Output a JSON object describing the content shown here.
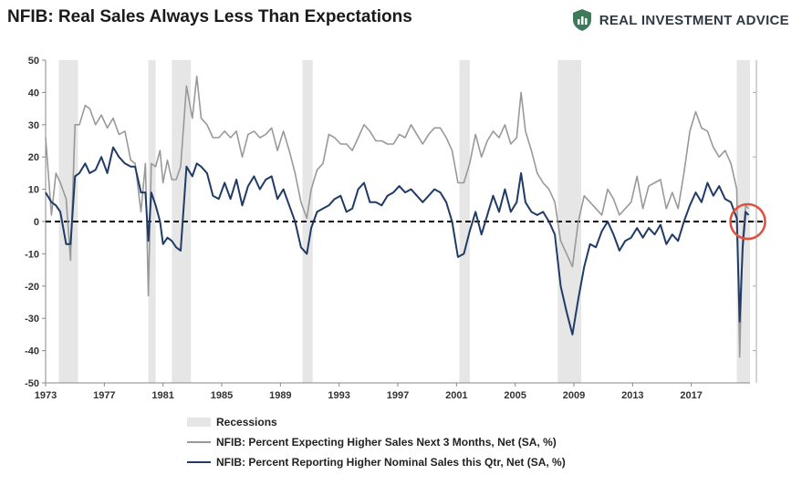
{
  "header": {
    "title": "NFIB: Real Sales Always Less Than Expectations",
    "brand": "REAL INVESTMENT ADVICE",
    "brand_icon": "shield-chart-icon",
    "brand_color": "#3d7a5a"
  },
  "chart_data": {
    "type": "line",
    "title": "NFIB: Real Sales Always Less Than Expectations",
    "xlim": [
      1973,
      2021
    ],
    "ylim": [
      -50,
      50
    ],
    "x_ticks": [
      "1973",
      "1977",
      "1981",
      "1985",
      "1989",
      "1993",
      "1997",
      "2001",
      "2005",
      "2009",
      "2013",
      "2017"
    ],
    "y_ticks": [
      "50",
      "40",
      "30",
      "20",
      "10",
      "0",
      "-10",
      "-20",
      "-30",
      "-40",
      "-50"
    ],
    "recessions": [
      [
        1973.9,
        1975.2
      ],
      [
        1980.0,
        1980.5
      ],
      [
        1981.6,
        1982.9
      ],
      [
        1990.5,
        1991.2
      ],
      [
        2001.2,
        2001.9
      ],
      [
        2007.9,
        2009.5
      ],
      [
        2020.1,
        2021.0
      ]
    ],
    "legend_position": "bottom",
    "reference_line": 0,
    "highlight_circle": {
      "x": 2020.6,
      "y": 0,
      "color": "#e05040"
    },
    "series": [
      {
        "name": "NFIB: Percent Expecting Higher Sales Next 3 Months, Net (SA, %)",
        "color": "#999999",
        "x": [
          1973.0,
          1973.4,
          1973.7,
          1974.0,
          1974.4,
          1974.7,
          1975.0,
          1975.3,
          1975.7,
          1976.0,
          1976.4,
          1976.8,
          1977.2,
          1977.6,
          1978.0,
          1978.4,
          1978.8,
          1979.1,
          1979.5,
          1979.8,
          1980.0,
          1980.2,
          1980.5,
          1980.8,
          1981.0,
          1981.3,
          1981.6,
          1981.9,
          1982.2,
          1982.6,
          1983.0,
          1983.3,
          1983.6,
          1984.0,
          1984.4,
          1984.8,
          1985.2,
          1985.6,
          1986.0,
          1986.4,
          1986.8,
          1987.2,
          1987.6,
          1988.0,
          1988.4,
          1988.8,
          1989.2,
          1989.6,
          1990.0,
          1990.4,
          1990.8,
          1991.1,
          1991.5,
          1991.9,
          1992.3,
          1992.7,
          1993.1,
          1993.5,
          1993.9,
          1994.3,
          1994.7,
          1995.1,
          1995.5,
          1995.9,
          1996.3,
          1996.7,
          1997.1,
          1997.5,
          1997.9,
          1998.3,
          1998.7,
          1999.1,
          1999.5,
          1999.9,
          2000.3,
          2000.7,
          2001.1,
          2001.5,
          2001.9,
          2002.3,
          2002.7,
          2003.1,
          2003.5,
          2003.9,
          2004.3,
          2004.7,
          2005.1,
          2005.4,
          2005.7,
          2006.1,
          2006.5,
          2006.9,
          2007.3,
          2007.7,
          2008.1,
          2008.5,
          2008.9,
          2009.3,
          2009.7,
          2010.1,
          2010.5,
          2010.9,
          2011.3,
          2011.7,
          2012.1,
          2012.5,
          2012.9,
          2013.3,
          2013.7,
          2014.1,
          2014.5,
          2014.9,
          2015.3,
          2015.7,
          2016.1,
          2016.5,
          2016.9,
          2017.3,
          2017.7,
          2018.1,
          2018.5,
          2018.9,
          2019.3,
          2019.7,
          2020.1,
          2020.3,
          2020.5,
          2020.7,
          2020.9
        ],
        "values": [
          26,
          2,
          15,
          12,
          7,
          -12,
          30,
          30,
          36,
          35,
          30,
          33,
          29,
          32,
          27,
          28,
          19,
          18,
          3,
          18,
          -23,
          18,
          17,
          22,
          12,
          19,
          13,
          13,
          17,
          42,
          32,
          45,
          32,
          30,
          26,
          26,
          28,
          26,
          28,
          20,
          27,
          28,
          26,
          27,
          29,
          22,
          28,
          22,
          15,
          6,
          1,
          10,
          16,
          18,
          27,
          26,
          24,
          24,
          22,
          26,
          30,
          28,
          25,
          25,
          24,
          24,
          27,
          26,
          30,
          27,
          24,
          27,
          29,
          29,
          26,
          22,
          12,
          12,
          18,
          27,
          20,
          25,
          28,
          26,
          30,
          24,
          26,
          40,
          28,
          22,
          15,
          12,
          10,
          6,
          -6,
          -10,
          -14,
          0,
          8,
          6,
          4,
          2,
          10,
          7,
          2,
          4,
          6,
          14,
          4,
          11,
          12,
          13,
          4,
          9,
          4,
          15,
          28,
          34,
          29,
          28,
          23,
          20,
          22,
          18,
          10,
          -42,
          -5,
          5,
          4
        ]
      },
      {
        "name": "NFIB: Percent Reporting Higher Nominal Sales this Qtr, Net (SA, %)",
        "color": "#1f3b66",
        "x": [
          1973.0,
          1973.4,
          1973.7,
          1974.0,
          1974.4,
          1974.7,
          1975.0,
          1975.3,
          1975.7,
          1976.0,
          1976.4,
          1976.8,
          1977.2,
          1977.6,
          1978.0,
          1978.4,
          1978.8,
          1979.1,
          1979.5,
          1979.8,
          1980.0,
          1980.2,
          1980.5,
          1980.8,
          1981.0,
          1981.3,
          1981.6,
          1981.9,
          1982.2,
          1982.6,
          1983.0,
          1983.3,
          1983.6,
          1984.0,
          1984.4,
          1984.8,
          1985.2,
          1985.6,
          1986.0,
          1986.4,
          1986.8,
          1987.2,
          1987.6,
          1988.0,
          1988.4,
          1988.8,
          1989.2,
          1989.6,
          1990.0,
          1990.4,
          1990.8,
          1991.1,
          1991.5,
          1991.9,
          1992.3,
          1992.7,
          1993.1,
          1993.5,
          1993.9,
          1994.3,
          1994.7,
          1995.1,
          1995.5,
          1995.9,
          1996.3,
          1996.7,
          1997.1,
          1997.5,
          1997.9,
          1998.3,
          1998.7,
          1999.1,
          1999.5,
          1999.9,
          2000.3,
          2000.7,
          2001.1,
          2001.5,
          2001.9,
          2002.3,
          2002.7,
          2003.1,
          2003.5,
          2003.9,
          2004.3,
          2004.7,
          2005.1,
          2005.4,
          2005.7,
          2006.1,
          2006.5,
          2006.9,
          2007.3,
          2007.7,
          2008.1,
          2008.5,
          2008.9,
          2009.3,
          2009.7,
          2010.1,
          2010.5,
          2010.9,
          2011.3,
          2011.7,
          2012.1,
          2012.5,
          2012.9,
          2013.3,
          2013.7,
          2014.1,
          2014.5,
          2014.9,
          2015.3,
          2015.7,
          2016.1,
          2016.5,
          2016.9,
          2017.3,
          2017.7,
          2018.1,
          2018.5,
          2018.9,
          2019.3,
          2019.7,
          2020.1,
          2020.3,
          2020.5,
          2020.7,
          2020.9
        ],
        "values": [
          9,
          6,
          5,
          3,
          -7,
          -7,
          14,
          15,
          18,
          15,
          16,
          20,
          15,
          23,
          20,
          18,
          17,
          17,
          9,
          9,
          -6,
          9,
          5,
          0,
          -7,
          -5,
          -6,
          -8,
          -9,
          17,
          14,
          18,
          17,
          15,
          8,
          7,
          12,
          7,
          13,
          5,
          11,
          14,
          10,
          13,
          14,
          7,
          10,
          5,
          0,
          -8,
          -10,
          -2,
          3,
          4,
          5,
          7,
          8,
          3,
          4,
          10,
          12,
          6,
          6,
          5,
          8,
          9,
          11,
          9,
          10,
          8,
          6,
          8,
          10,
          9,
          6,
          0,
          -11,
          -10,
          -3,
          3,
          -4,
          2,
          8,
          3,
          10,
          3,
          6,
          15,
          6,
          3,
          2,
          3,
          0,
          -4,
          -20,
          -28,
          -35,
          -24,
          -14,
          -7,
          -8,
          -3,
          0,
          -4,
          -9,
          -6,
          -5,
          -2,
          -5,
          -2,
          -4,
          -1,
          -7,
          -4,
          -6,
          0,
          5,
          9,
          6,
          12,
          8,
          11,
          7,
          6,
          1,
          -31,
          -8,
          3,
          2
        ]
      }
    ]
  },
  "legend": {
    "recessions_label": "Recessions",
    "recessions_color": "#e6e6e6",
    "items": [
      {
        "label": "NFIB: Percent Expecting Higher Sales Next 3 Months, Net (SA, %)",
        "color": "#999999"
      },
      {
        "label": "NFIB: Percent Reporting Higher Nominal Sales this Qtr, Net (SA, %)",
        "color": "#1f3b66"
      }
    ]
  }
}
